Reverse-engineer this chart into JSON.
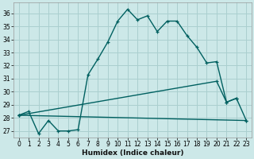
{
  "xlabel": "Humidex (Indice chaleur)",
  "xlim": [
    -0.5,
    23.5
  ],
  "ylim": [
    26.5,
    36.8
  ],
  "xticks": [
    0,
    1,
    2,
    3,
    4,
    5,
    6,
    7,
    8,
    9,
    10,
    11,
    12,
    13,
    14,
    15,
    16,
    17,
    18,
    19,
    20,
    21,
    22,
    23
  ],
  "yticks": [
    27,
    28,
    29,
    30,
    31,
    32,
    33,
    34,
    35,
    36
  ],
  "bg_color": "#cce8e8",
  "grid_color": "#aacfcf",
  "line_color": "#006060",
  "line1_x": [
    0,
    1,
    2,
    3,
    4,
    5,
    6,
    7,
    8,
    9,
    10,
    11,
    12,
    13,
    14,
    15,
    16,
    17,
    18,
    19,
    20,
    21,
    22
  ],
  "line1_y": [
    28.2,
    28.5,
    26.8,
    27.8,
    27.0,
    27.0,
    27.1,
    31.3,
    32.5,
    33.8,
    35.4,
    36.3,
    35.5,
    35.8,
    34.6,
    35.4,
    35.4,
    34.3,
    33.4,
    32.2,
    32.3,
    29.2,
    29.5
  ],
  "line2_x": [
    0,
    23
  ],
  "line2_y": [
    28.2,
    27.8
  ],
  "line3_x": [
    0,
    20,
    21,
    22,
    23
  ],
  "line3_y": [
    28.2,
    30.8,
    29.2,
    29.5,
    27.8
  ]
}
